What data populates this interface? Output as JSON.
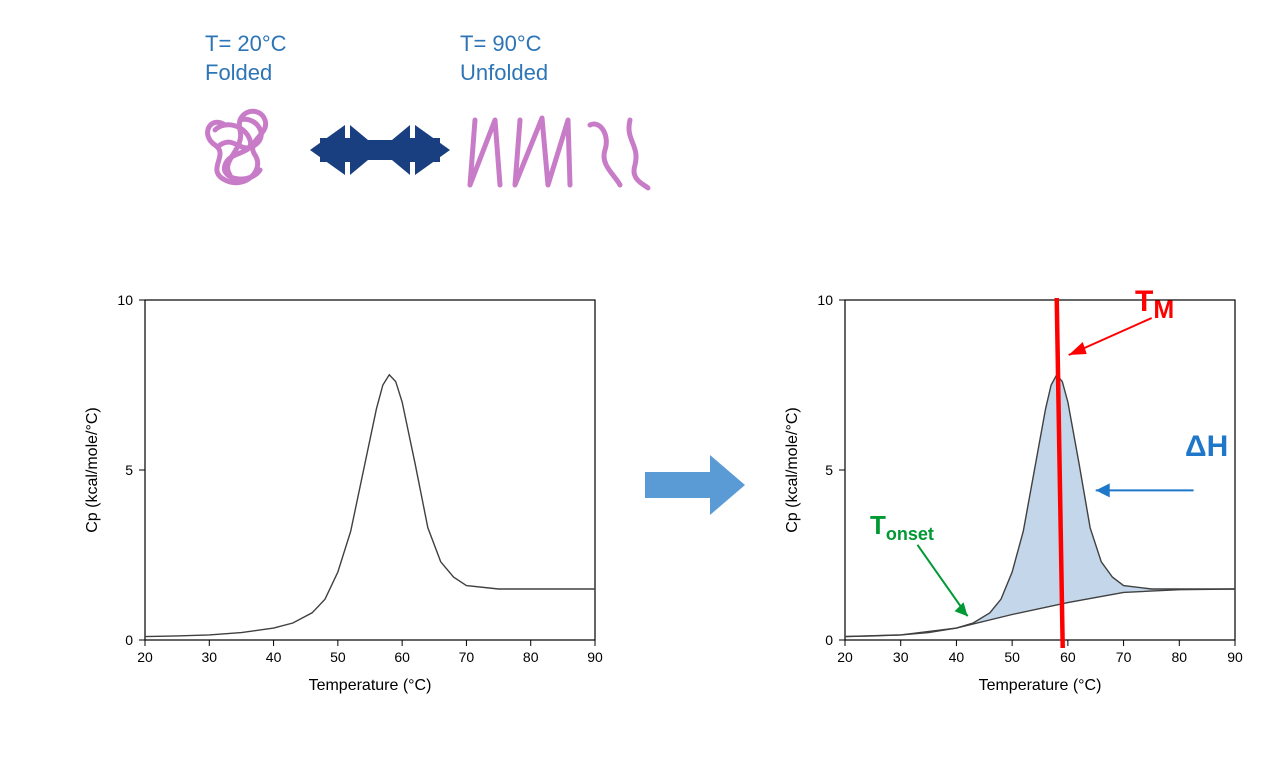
{
  "protein_states": {
    "folded": {
      "temp_line": "T= 20°C",
      "state_line": "Folded"
    },
    "unfolded": {
      "temp_line": "T= 90°C",
      "state_line": "Unfolded"
    }
  },
  "colors": {
    "label_text": "#2e75b6",
    "protein": "#c87cc8",
    "arrow_state": "#1a3f80",
    "arrow_middle": "#5b9bd5",
    "axis": "#000000",
    "curve": "#404040",
    "fill_area": "#b8cfe6",
    "tm_line": "#ff0000",
    "onset_arrow": "#009933",
    "dh_arrow": "#1f77c9"
  },
  "chart": {
    "type": "line",
    "xlabel": "Temperature (°C)",
    "ylabel": "Cp (kcal/mole/°C)",
    "xlim": [
      20,
      90
    ],
    "ylim": [
      0,
      10
    ],
    "xticks": [
      20,
      30,
      40,
      50,
      60,
      70,
      80,
      90
    ],
    "yticks": [
      0,
      5,
      10
    ],
    "curve_points": [
      [
        20,
        0.1
      ],
      [
        25,
        0.12
      ],
      [
        30,
        0.15
      ],
      [
        35,
        0.22
      ],
      [
        40,
        0.35
      ],
      [
        43,
        0.5
      ],
      [
        46,
        0.8
      ],
      [
        48,
        1.2
      ],
      [
        50,
        2.0
      ],
      [
        52,
        3.2
      ],
      [
        54,
        5.0
      ],
      [
        56,
        6.8
      ],
      [
        57,
        7.5
      ],
      [
        58,
        7.8
      ],
      [
        59,
        7.6
      ],
      [
        60,
        7.0
      ],
      [
        62,
        5.2
      ],
      [
        64,
        3.3
      ],
      [
        66,
        2.3
      ],
      [
        68,
        1.85
      ],
      [
        70,
        1.6
      ],
      [
        75,
        1.5
      ],
      [
        80,
        1.5
      ],
      [
        85,
        1.5
      ],
      [
        90,
        1.5
      ]
    ],
    "baseline_points": [
      [
        20,
        0.1
      ],
      [
        30,
        0.15
      ],
      [
        40,
        0.35
      ],
      [
        50,
        0.75
      ],
      [
        60,
        1.1
      ],
      [
        70,
        1.4
      ],
      [
        80,
        1.48
      ],
      [
        90,
        1.5
      ]
    ],
    "tm_x": 58,
    "line_width": 1.4,
    "background": "#ffffff"
  },
  "annotations": {
    "tm": "T",
    "tm_sub": "M",
    "dh": "ΔH",
    "onset": "T",
    "onset_sub": "onset"
  }
}
